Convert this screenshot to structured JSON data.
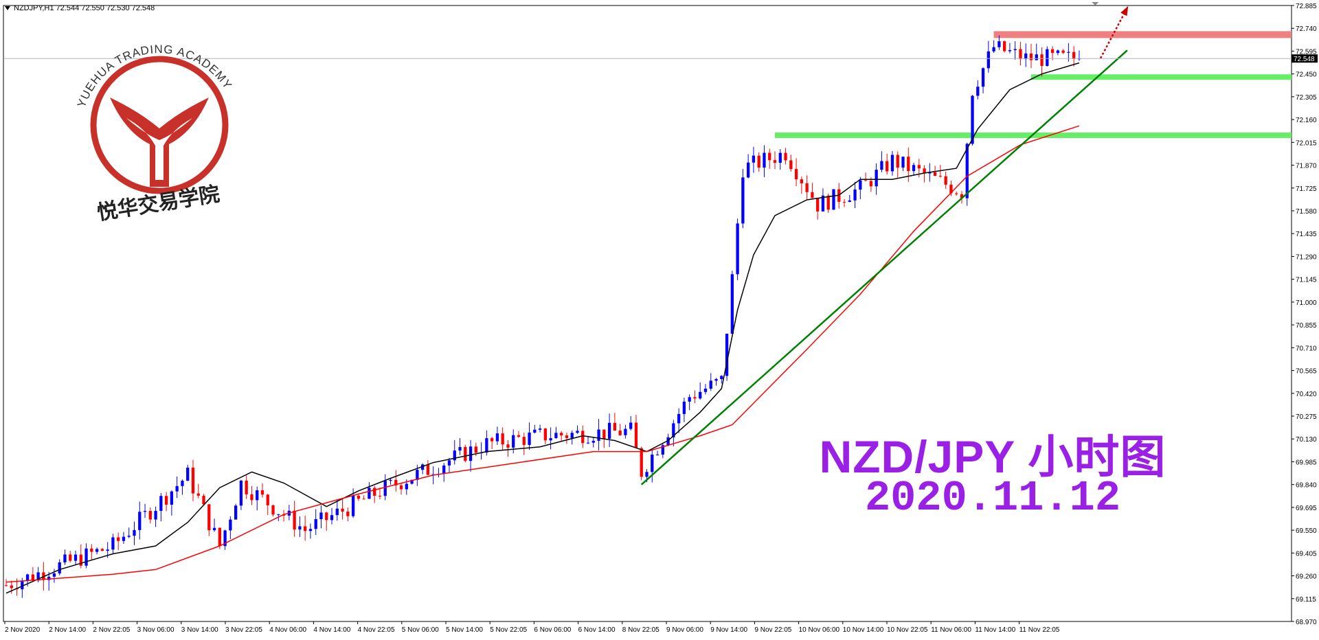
{
  "window": {
    "symbol_line": "NZDJPY,H1  72.544 72.550 72.530 72.548"
  },
  "watermark": {
    "arc_text": "YUEHUA TRADING ACADEMY",
    "cn_text": "悦华交易学院",
    "color": "#c8302a"
  },
  "overlay": {
    "title": "NZD/JPY 小时图",
    "date": "2020.11.12",
    "color": "#9b20e6"
  },
  "chart_data": {
    "type": "candlestick",
    "symbol": "NZDJPY",
    "timeframe": "H1",
    "ylim": [
      68.97,
      72.885
    ],
    "y_ticks": [
      "72.885",
      "72.740",
      "72.595",
      "72.450",
      "72.305",
      "72.160",
      "72.015",
      "71.870",
      "71.725",
      "71.580",
      "71.435",
      "71.290",
      "71.145",
      "71.000",
      "70.855",
      "70.710",
      "70.565",
      "70.420",
      "70.275",
      "70.130",
      "69.985",
      "69.840",
      "69.695",
      "69.550",
      "69.405",
      "69.260",
      "69.115",
      "68.970"
    ],
    "x_ticks": [
      "2 Nov 2020",
      "2 Nov 14:00",
      "2 Nov 22:05",
      "3 Nov 06:00",
      "3 Nov 14:00",
      "3 Nov 22:05",
      "4 Nov 06:00",
      "4 Nov 14:00",
      "4 Nov 22:05",
      "5 Nov 06:00",
      "5 Nov 14:00",
      "5 Nov 22:05",
      "6 Nov 06:00",
      "6 Nov 14:00",
      "8 Nov 22:05",
      "9 Nov 06:00",
      "9 Nov 14:00",
      "9 Nov 22:05",
      "10 Nov 06:00",
      "10 Nov 14:00",
      "10 Nov 22:05",
      "11 Nov 06:00",
      "11 Nov 14:00",
      "11 Nov 22:05"
    ],
    "current_price": "72.548",
    "colors": {
      "bull": "#0000ff",
      "bear": "#ff0000",
      "ma_fast": "#000000",
      "ma_slow": "#ff0000",
      "trendline": "#008000",
      "resistance": "#f08080",
      "support": "#66ee66",
      "arrow": "#cc0000"
    },
    "key_points": [
      {
        "t": 0,
        "p": 69.2
      },
      {
        "t": 20,
        "p": 69.45
      },
      {
        "t": 34,
        "p": 69.9
      },
      {
        "t": 40,
        "p": 69.45
      },
      {
        "t": 44,
        "p": 69.85
      },
      {
        "t": 56,
        "p": 69.55
      },
      {
        "t": 70,
        "p": 69.8
      },
      {
        "t": 90,
        "p": 70.1
      },
      {
        "t": 100,
        "p": 70.15
      },
      {
        "t": 117,
        "p": 70.18
      },
      {
        "t": 119,
        "p": 69.92
      },
      {
        "t": 128,
        "p": 70.4
      },
      {
        "t": 134,
        "p": 70.5
      },
      {
        "t": 136,
        "p": 71.15
      },
      {
        "t": 138,
        "p": 71.85
      },
      {
        "t": 146,
        "p": 71.95
      },
      {
        "t": 152,
        "p": 71.62
      },
      {
        "t": 160,
        "p": 71.72
      },
      {
        "t": 166,
        "p": 71.9
      },
      {
        "t": 176,
        "p": 71.75
      },
      {
        "t": 179,
        "p": 71.7
      },
      {
        "t": 181,
        "p": 72.35
      },
      {
        "t": 185,
        "p": 72.62
      },
      {
        "t": 191,
        "p": 72.55
      },
      {
        "t": 201,
        "p": 72.548
      }
    ],
    "levels": {
      "resistance": 72.7,
      "support_upper": 72.43,
      "support_lower": 72.06
    },
    "ma_fast": [
      {
        "t": 0,
        "p": 69.15
      },
      {
        "t": 10,
        "p": 69.3
      },
      {
        "t": 20,
        "p": 69.4
      },
      {
        "t": 28,
        "p": 69.45
      },
      {
        "t": 34,
        "p": 69.6
      },
      {
        "t": 40,
        "p": 69.82
      },
      {
        "t": 46,
        "p": 69.92
      },
      {
        "t": 52,
        "p": 69.85
      },
      {
        "t": 60,
        "p": 69.7
      },
      {
        "t": 66,
        "p": 69.8
      },
      {
        "t": 72,
        "p": 69.88
      },
      {
        "t": 80,
        "p": 69.98
      },
      {
        "t": 90,
        "p": 70.05
      },
      {
        "t": 100,
        "p": 70.08
      },
      {
        "t": 108,
        "p": 70.15
      },
      {
        "t": 114,
        "p": 70.12
      },
      {
        "t": 120,
        "p": 70.05
      },
      {
        "t": 124,
        "p": 70.12
      },
      {
        "t": 130,
        "p": 70.3
      },
      {
        "t": 134,
        "p": 70.45
      },
      {
        "t": 137,
        "p": 70.95
      },
      {
        "t": 140,
        "p": 71.3
      },
      {
        "t": 144,
        "p": 71.55
      },
      {
        "t": 150,
        "p": 71.65
      },
      {
        "t": 156,
        "p": 71.68
      },
      {
        "t": 160,
        "p": 71.78
      },
      {
        "t": 166,
        "p": 71.78
      },
      {
        "t": 172,
        "p": 71.82
      },
      {
        "t": 178,
        "p": 71.85
      },
      {
        "t": 182,
        "p": 72.1
      },
      {
        "t": 188,
        "p": 72.35
      },
      {
        "t": 194,
        "p": 72.45
      },
      {
        "t": 201,
        "p": 72.52
      }
    ],
    "ma_slow": [
      {
        "t": 0,
        "p": 69.22
      },
      {
        "t": 20,
        "p": 69.27
      },
      {
        "t": 28,
        "p": 69.3
      },
      {
        "t": 40,
        "p": 69.45
      },
      {
        "t": 52,
        "p": 69.65
      },
      {
        "t": 66,
        "p": 69.78
      },
      {
        "t": 80,
        "p": 69.9
      },
      {
        "t": 96,
        "p": 69.98
      },
      {
        "t": 110,
        "p": 70.05
      },
      {
        "t": 120,
        "p": 70.05
      },
      {
        "t": 130,
        "p": 70.15
      },
      {
        "t": 136,
        "p": 70.22
      },
      {
        "t": 150,
        "p": 70.7
      },
      {
        "t": 160,
        "p": 71.05
      },
      {
        "t": 170,
        "p": 71.45
      },
      {
        "t": 180,
        "p": 71.8
      },
      {
        "t": 190,
        "p": 72.0
      },
      {
        "t": 201,
        "p": 72.12
      }
    ],
    "trendline": [
      {
        "t": 119,
        "p": 69.84
      },
      {
        "t": 210,
        "p": 72.6
      }
    ],
    "arrow": [
      {
        "t": 205,
        "p": 72.55
      },
      {
        "t": 210,
        "p": 72.87
      }
    ]
  }
}
